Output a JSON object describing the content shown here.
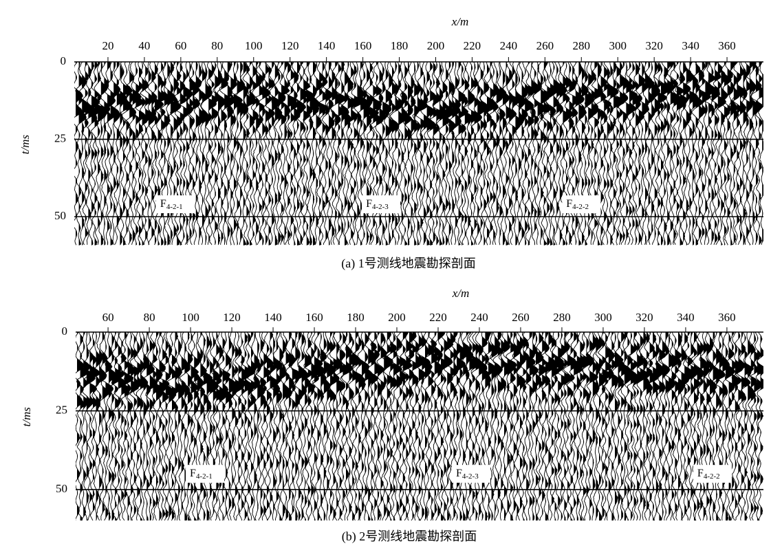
{
  "chart_data": [
    {
      "type": "seismic",
      "xlabel": "x/m",
      "ylabel": "t/ms",
      "caption": "(a) 1号测线地震勘探剖面",
      "xlim": [
        1.5,
        380
      ],
      "xticks": [
        20,
        40,
        60,
        80,
        100,
        120,
        140,
        160,
        180,
        200,
        220,
        240,
        260,
        280,
        300,
        320,
        340,
        360
      ],
      "ylim": [
        0,
        59.3
      ],
      "yticks": [
        0,
        25,
        50
      ],
      "grid": true,
      "annotations": [
        {
          "text": "F",
          "sub": "4-2-1",
          "x": 57,
          "t": 46
        },
        {
          "text": "F",
          "sub": "4-2-3",
          "x": 170,
          "t": 46
        },
        {
          "text": "F",
          "sub": "4-2-2",
          "x": 280,
          "t": 46
        }
      ]
    },
    {
      "type": "seismic",
      "xlabel": "x/m",
      "ylabel": "t/ms",
      "caption": "(b) 2号测线地震勘探剖面",
      "xlim": [
        44.3,
        377.7
      ],
      "xticks": [
        60,
        80,
        100,
        120,
        140,
        160,
        180,
        200,
        220,
        240,
        260,
        280,
        300,
        320,
        340,
        360
      ],
      "ylim": [
        0,
        59.8
      ],
      "yticks": [
        0,
        25,
        50
      ],
      "grid": true,
      "annotations": [
        {
          "text": "F",
          "sub": "4-2-1",
          "x": 107,
          "t": 45
        },
        {
          "text": "F",
          "sub": "4-2-3",
          "x": 236,
          "t": 45
        },
        {
          "text": "F",
          "sub": "4-2-2",
          "x": 353,
          "t": 45
        }
      ]
    }
  ]
}
